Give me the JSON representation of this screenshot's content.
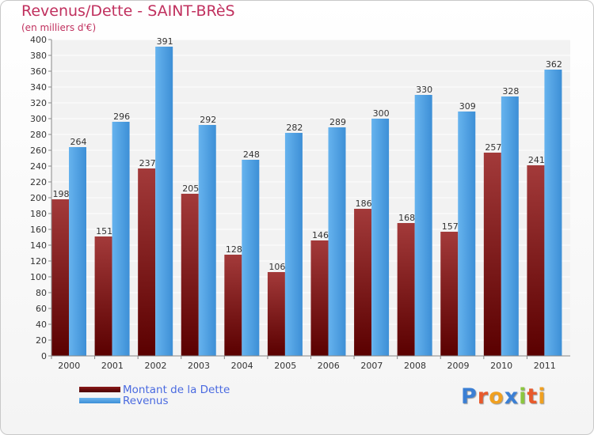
{
  "header": {
    "title": "Revenus/Dette - SAINT-BRèS",
    "subtitle": "(en milliers d'€)"
  },
  "chart_data": {
    "type": "bar",
    "title": "Revenus/Dette - SAINT-BRèS",
    "ylabel": "(en milliers d'€)",
    "xlabel": "",
    "categories": [
      "2000",
      "2001",
      "2002",
      "2003",
      "2004",
      "2005",
      "2006",
      "2007",
      "2008",
      "2009",
      "2010",
      "2011"
    ],
    "series": [
      {
        "name": "Montant de la Dette",
        "color": "#8b1a1a",
        "values": [
          198,
          151,
          237,
          205,
          128,
          106,
          146,
          186,
          168,
          157,
          257,
          241
        ]
      },
      {
        "name": "Revenus",
        "color": "#4f9fe0",
        "values": [
          264,
          296,
          391,
          292,
          248,
          282,
          289,
          300,
          330,
          309,
          328,
          362
        ]
      }
    ],
    "ylim": [
      0,
      400
    ],
    "yticks": [
      0,
      20,
      40,
      60,
      80,
      100,
      120,
      140,
      160,
      180,
      200,
      220,
      240,
      260,
      280,
      300,
      320,
      340,
      360,
      380,
      400
    ],
    "grid": true,
    "legend": "bottom-left"
  },
  "legend": {
    "items": [
      {
        "label": "Montant de la Dette",
        "color": "#6b0f0f"
      },
      {
        "label": "Revenus",
        "color": "#4f9fe0"
      }
    ]
  },
  "logo": {
    "letters": [
      "P",
      "r",
      "o",
      "x",
      "i",
      "t",
      "i"
    ]
  }
}
